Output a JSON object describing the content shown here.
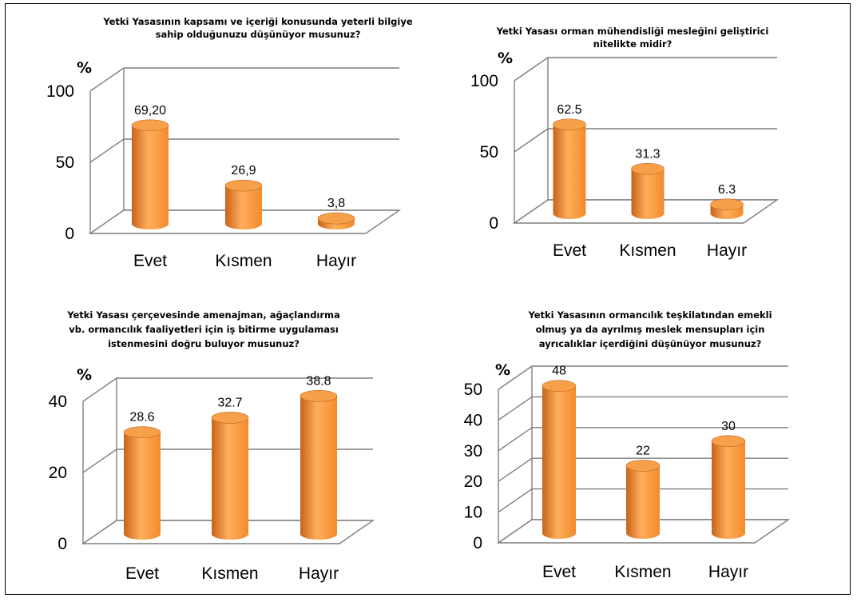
{
  "colors": {
    "bar_light": "#ffae5c",
    "bar_mid": "#f28b2c",
    "bar_dark": "#c8631a",
    "bar_top": "#f7a04a"
  },
  "chart_data": [
    {
      "type": "bar",
      "title_lines": [
        "Yetki Yasasının kapsamı ve içeriği konusunda yeterli bilgiye",
        "sahip olduğunuzu düşünüyor musunuz?"
      ],
      "unit_label": "%",
      "categories": [
        "Evet",
        "Kısmen",
        "Hayır"
      ],
      "values": [
        69.2,
        26.9,
        3.8
      ],
      "value_labels": [
        "69,20",
        "26,9",
        "3,8"
      ],
      "ylim": [
        0,
        100
      ],
      "yticks": [
        0,
        50,
        100
      ],
      "ytick_labels": [
        "0",
        "50",
        "100"
      ],
      "grid": true
    },
    {
      "type": "bar",
      "title_lines": [
        "Yetki Yasası orman mühendisliği mesleğini geliştirici",
        "nitelikte midir?"
      ],
      "unit_label": "%",
      "categories": [
        "Evet",
        "Kısmen",
        "Hayır"
      ],
      "values": [
        62.5,
        31.3,
        6.3
      ],
      "value_labels": [
        "62.5",
        "31.3",
        "6.3"
      ],
      "ylim": [
        0,
        100
      ],
      "yticks": [
        0,
        50,
        100
      ],
      "ytick_labels": [
        "0",
        "50",
        "100"
      ],
      "grid": true
    },
    {
      "type": "bar",
      "title_lines": [
        "Yetki Yasası çerçevesinde amenajman, ağaçlandırma",
        "vb. ormancılık faaliyetleri için iş bitirme uygulaması",
        "istenmesini doğru buluyor musunuz?"
      ],
      "unit_label": "%",
      "categories": [
        "Evet",
        "Kısmen",
        "Hayır"
      ],
      "values": [
        28.6,
        32.7,
        38.8
      ],
      "value_labels": [
        "28.6",
        "32.7",
        "38.8"
      ],
      "ylim": [
        0,
        40
      ],
      "yticks": [
        0,
        20,
        40
      ],
      "ytick_labels": [
        "0",
        "20",
        "40"
      ],
      "grid": true
    },
    {
      "type": "bar",
      "title_lines": [
        "Yetki Yasasının ormancılık teşkilatından emekli",
        "olmuş ya da ayrılmış meslek mensupları için",
        "ayrıcalıklar içerdiğini düşünüyor musunuz?"
      ],
      "unit_label": "%",
      "categories": [
        "Evet",
        "Kısmen",
        "Hayır"
      ],
      "values": [
        48,
        22,
        30
      ],
      "value_labels": [
        "48",
        "22",
        "30"
      ],
      "ylim": [
        0,
        50
      ],
      "yticks": [
        0,
        10,
        20,
        30,
        40,
        50
      ],
      "ytick_labels": [
        "0",
        "10",
        "20",
        "30",
        "40",
        "50"
      ],
      "grid": true
    }
  ]
}
